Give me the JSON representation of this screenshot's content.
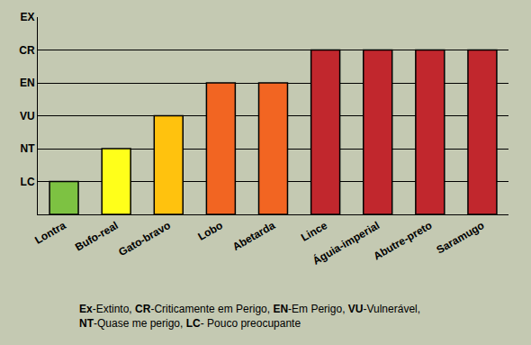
{
  "chart_data": {
    "type": "bar",
    "categories": [
      "Lontra",
      "Bufo-real",
      "Gato-bravo",
      "Lobo",
      "Abetarda",
      "Lince",
      "Águia-imperial",
      "Abutre-preto",
      "Saramugo"
    ],
    "values": [
      1,
      2,
      3,
      4,
      4,
      5,
      5,
      5,
      5
    ],
    "colors": [
      "#7dc242",
      "#ffff1a",
      "#ffc20e",
      "#f26522",
      "#f26522",
      "#c1272d",
      "#c1272d",
      "#c1272d",
      "#c1272d"
    ],
    "ylim": [
      0,
      6
    ],
    "yticks": [
      {
        "value": 1,
        "label": "LC"
      },
      {
        "value": 2,
        "label": "NT"
      },
      {
        "value": 3,
        "label": "VU"
      },
      {
        "value": 4,
        "label": "EN"
      },
      {
        "value": 5,
        "label": "CR"
      },
      {
        "value": 6,
        "label": "EX"
      }
    ],
    "grid": true,
    "annotations": [
      "Ex-Extinto, CR-Criticamente em Perigo, EN-Em Perigo, VU-Vulnerável,",
      "NT-Quase me perigo, LC- Pouco preocupante"
    ]
  }
}
